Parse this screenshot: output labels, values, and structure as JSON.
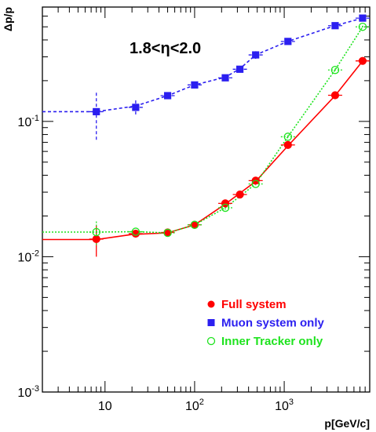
{
  "chart_data": {
    "type": "scatter",
    "title": "",
    "xlabel": "p[GeV/c]",
    "ylabel": "Δp/p",
    "annotation": "1.8<η<2.0",
    "xscale": "log",
    "yscale": "log",
    "xlim": [
      2,
      9000
    ],
    "ylim": [
      0.001,
      0.7
    ],
    "x_ticks": [
      {
        "value": 10,
        "base": "10",
        "exp": ""
      },
      {
        "value": 100,
        "base": "10",
        "exp": "2"
      },
      {
        "value": 1000,
        "base": "10",
        "exp": "3"
      }
    ],
    "y_ticks": [
      {
        "value": 0.001,
        "base": "10",
        "exp": "-3"
      },
      {
        "value": 0.01,
        "base": "10",
        "exp": "-2"
      },
      {
        "value": 0.1,
        "base": "10",
        "exp": "-1"
      }
    ],
    "grid": false,
    "legend_position": "bottom-right",
    "series": [
      {
        "name": "Full system",
        "color": "#ff0000",
        "marker": "filled-circle",
        "line": "solid",
        "x": [
          8,
          22,
          50,
          100,
          220,
          320,
          480,
          1100,
          3700,
          7500
        ],
        "y": [
          0.0135,
          0.0148,
          0.0151,
          0.0172,
          0.0248,
          0.0288,
          0.0365,
          0.067,
          0.156,
          0.28
        ],
        "yerr": [
          0.0035,
          0.0006,
          0.0004,
          0.0004,
          0.0008,
          0.0009,
          0.001,
          0.002,
          0.004,
          0.006
        ],
        "curve_x": [
          2,
          8,
          20,
          50,
          100,
          220,
          480,
          1100,
          3700,
          7500
        ],
        "curve_y": [
          0.0134,
          0.0134,
          0.0146,
          0.015,
          0.0172,
          0.0245,
          0.036,
          0.066,
          0.155,
          0.28
        ]
      },
      {
        "name": "Muon system only",
        "color": "#2b1ff0",
        "marker": "filled-square",
        "line": "dashed",
        "x": [
          8,
          22,
          50,
          100,
          220,
          320,
          480,
          1100,
          3700,
          7500
        ],
        "y": [
          0.118,
          0.127,
          0.155,
          0.186,
          0.21,
          0.243,
          0.31,
          0.39,
          0.51,
          0.58
        ],
        "yerr": [
          0.045,
          0.016,
          0.008,
          0.01,
          0.008,
          0.01,
          0.02,
          0.015,
          0.015,
          0.02
        ],
        "curve_x": [
          2,
          8,
          22,
          50,
          100,
          220,
          320,
          480,
          1100,
          3700,
          7500
        ],
        "curve_y": [
          0.118,
          0.118,
          0.13,
          0.155,
          0.186,
          0.212,
          0.245,
          0.31,
          0.39,
          0.51,
          0.58
        ]
      },
      {
        "name": "Inner Tracker only",
        "color": "#1ee31e",
        "marker": "open-circle",
        "line": "dotted",
        "x": [
          8,
          22,
          50,
          100,
          220,
          480,
          1100,
          3700,
          7500
        ],
        "y": [
          0.0152,
          0.0153,
          0.015,
          0.0172,
          0.023,
          0.0345,
          0.077,
          0.24,
          0.5
        ],
        "yerr": [
          0.003,
          0.0005,
          0.0004,
          0.0004,
          0.0008,
          0.001,
          0.002,
          0.006,
          0.01
        ],
        "curve_x": [
          2,
          8,
          22,
          50,
          100,
          220,
          480,
          1100,
          3700,
          7500
        ],
        "curve_y": [
          0.0152,
          0.0152,
          0.0153,
          0.015,
          0.0172,
          0.023,
          0.0345,
          0.077,
          0.24,
          0.5
        ]
      }
    ]
  }
}
